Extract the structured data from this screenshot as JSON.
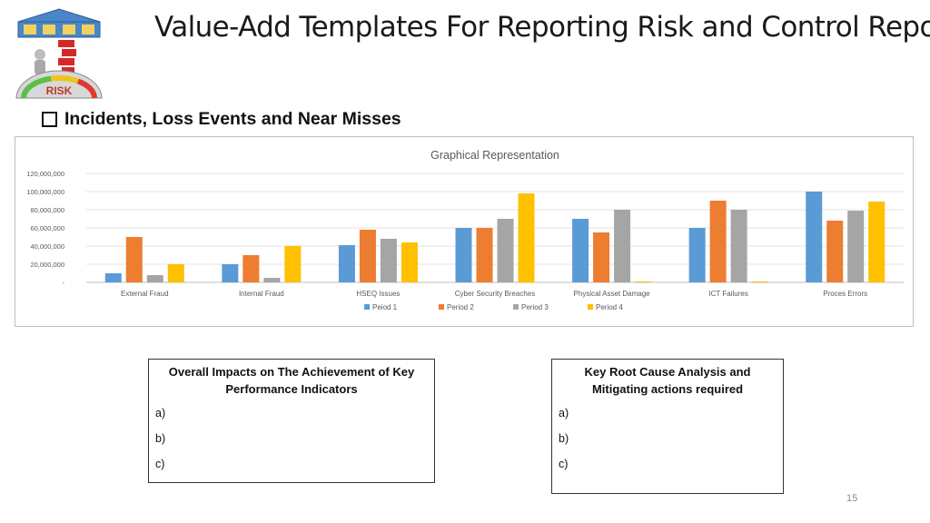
{
  "header": {
    "title": "Value-Add Templates For Reporting Risk and Control Report",
    "logo_text": "RISK"
  },
  "section": {
    "heading": "Incidents, Loss Events and Near Misses"
  },
  "colors": {
    "Peiod 1": "#5B9BD5",
    "Period 2": "#ED7D31",
    "Period 3": "#A5A5A5",
    "Period 4": "#FFC000"
  },
  "chart_data": {
    "type": "bar",
    "title": "Graphical  Representation",
    "xlabel": "",
    "ylabel": "",
    "ylim": [
      0,
      120000000
    ],
    "yticks": [
      0,
      20000000,
      40000000,
      60000000,
      80000000,
      100000000,
      120000000
    ],
    "ytick_labels": [
      "-",
      "20,000,000",
      "40,000,000",
      "60,000,000",
      "80,000,000",
      "100,000,000",
      "120,000,000"
    ],
    "grid": true,
    "legend_position": "bottom",
    "categories": [
      "External Fraud",
      "Internal Fraud",
      "HSEQ Issues",
      "Cyber Security Breaches",
      "Physical Asset Damage",
      "ICT Failures",
      "Proces Errors"
    ],
    "series": [
      {
        "name": "Peiod 1",
        "values": [
          10000000,
          20000000,
          41000000,
          60000000,
          70000000,
          60000000,
          100000000
        ]
      },
      {
        "name": "Period 2",
        "values": [
          50000000,
          30000000,
          58000000,
          60000000,
          55000000,
          90000000,
          68000000
        ]
      },
      {
        "name": "Period 3",
        "values": [
          8000000,
          5000000,
          48000000,
          70000000,
          80000000,
          80000000,
          79000000
        ]
      },
      {
        "name": "Period 4",
        "values": [
          20000000,
          40000000,
          44000000,
          98000000,
          1000000,
          1000000,
          89000000
        ]
      }
    ]
  },
  "impacts_box": {
    "title": "Overall Impacts on The Achievement of Key Performance Indicators",
    "items": [
      "a)",
      "b)",
      "c)"
    ]
  },
  "root_cause_box": {
    "title": "Key  Root Cause Analysis and Mitigating actions required",
    "items": [
      "a)",
      "b)",
      "c)"
    ]
  },
  "footer": {
    "page_number": "15"
  }
}
